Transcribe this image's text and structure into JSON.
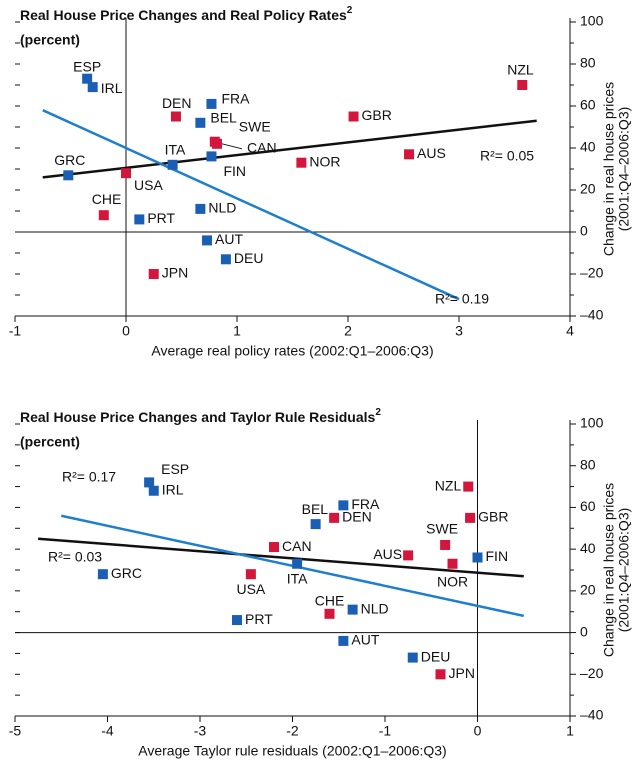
{
  "chart_data": [
    {
      "type": "scatter",
      "title": "Real House Price Changes and Real Policy Rates",
      "title_note": "2",
      "subtitle": "(percent)",
      "x_label": "Average real policy rates (2002:Q1–2006:Q3)",
      "y_label": [
        "Change in real house prices",
        "(2001:Q4–2006:Q3)"
      ],
      "xlim": [
        -1,
        4
      ],
      "xticks": [
        -1,
        0,
        1,
        2,
        3,
        4
      ],
      "ylim": [
        -40,
        100
      ],
      "yticks": [
        {
          "value": -40,
          "label": "–40"
        },
        {
          "value": -20,
          "label": "–20"
        },
        0,
        20,
        40,
        60,
        80,
        100
      ],
      "points": {
        "labels": [
          "ESP",
          "IRL",
          "DEN",
          "FRA",
          "BEL",
          "SWE",
          "CAN",
          "ITA",
          "FIN",
          "GBR",
          "NZL",
          "NOR",
          "AUS",
          "GRC",
          "USA",
          "CHE",
          "PRT",
          "NLD",
          "AUT",
          "DEU",
          "JPN"
        ],
        "x": [
          -0.35,
          -0.3,
          0.45,
          0.77,
          0.67,
          0.8,
          0.82,
          0.42,
          0.77,
          2.05,
          3.57,
          1.58,
          2.55,
          -0.52,
          0.0,
          -0.2,
          0.12,
          0.67,
          0.73,
          0.9,
          0.25
        ],
        "y": [
          73,
          69,
          55,
          61,
          52,
          43,
          42,
          32,
          36,
          55,
          70,
          33,
          37,
          27,
          28,
          8,
          6,
          11,
          -4,
          -13,
          -20
        ],
        "colors": [
          "#1a5fb4",
          "#1a5fb4",
          "#d4163c",
          "#1a5fb4",
          "#1a5fb4",
          "#d4163c",
          "#d4163c",
          "#1a5fb4",
          "#1a5fb4",
          "#d4163c",
          "#d4163c",
          "#d4163c",
          "#d4163c",
          "#1a5fb4",
          "#d4163c",
          "#d4163c",
          "#1a5fb4",
          "#1a5fb4",
          "#1a5fb4",
          "#1a5fb4",
          "#d4163c"
        ]
      },
      "fit_lines": [
        {
          "color": "#111111",
          "x": [
            -0.75,
            3.7
          ],
          "y": [
            26,
            53
          ],
          "label": "R²= 0.05"
        },
        {
          "color": "#1f7fcc",
          "x": [
            -0.75,
            3.0
          ],
          "y": [
            58,
            -32
          ],
          "label": "R²= 0.19"
        }
      ]
    },
    {
      "type": "scatter",
      "title": "Real House Price Changes and Taylor Rule Residuals",
      "title_note": "2",
      "subtitle": "(percent)",
      "x_label": "Average Taylor rule residuals (2002:Q1–2006:Q3)",
      "y_label": [
        "Change in real house prices",
        "(2001:Q4–2006:Q3)"
      ],
      "xlim": [
        -5,
        1
      ],
      "xticks": [
        -5,
        -4,
        -3,
        -2,
        -1,
        0,
        1
      ],
      "ylim": [
        -40,
        100
      ],
      "yticks": [
        {
          "value": -40,
          "label": "–40"
        },
        {
          "value": -20,
          "label": "–20"
        },
        0,
        20,
        40,
        60,
        80,
        100
      ],
      "points": {
        "labels": [
          "ESP",
          "IRL",
          "BEL",
          "FRA",
          "DEN",
          "NZL",
          "GBR",
          "SWE",
          "AUS",
          "NOR",
          "FIN",
          "CAN",
          "ITA",
          "USA",
          "GRC",
          "CHE",
          "NLD",
          "PRT",
          "AUT",
          "DEU",
          "JPN"
        ],
        "x": [
          -3.55,
          -3.5,
          -1.75,
          -1.45,
          -1.55,
          -0.1,
          -0.08,
          -0.35,
          -0.75,
          -0.27,
          0.0,
          -2.2,
          -1.95,
          -2.45,
          -4.05,
          -1.6,
          -1.35,
          -2.6,
          -1.45,
          -0.7,
          -0.4
        ],
        "y": [
          72,
          68,
          52,
          61,
          55,
          70,
          55,
          42,
          37,
          33,
          36,
          41,
          33,
          28,
          28,
          9,
          11,
          6,
          -4,
          -12,
          -20
        ],
        "colors": [
          "#1a5fb4",
          "#1a5fb4",
          "#1a5fb4",
          "#1a5fb4",
          "#d4163c",
          "#d4163c",
          "#d4163c",
          "#d4163c",
          "#d4163c",
          "#d4163c",
          "#1a5fb4",
          "#d4163c",
          "#1a5fb4",
          "#d4163c",
          "#1a5fb4",
          "#d4163c",
          "#1a5fb4",
          "#1a5fb4",
          "#1a5fb4",
          "#1a5fb4",
          "#d4163c"
        ]
      },
      "fit_lines": [
        {
          "color": "#111111",
          "x": [
            -4.75,
            0.5
          ],
          "y": [
            45,
            27
          ],
          "label": "R²= 0.03"
        },
        {
          "color": "#1f7fcc",
          "x": [
            -4.5,
            0.5
          ],
          "y": [
            56,
            8
          ],
          "label": "R²= 0.17"
        }
      ]
    }
  ]
}
